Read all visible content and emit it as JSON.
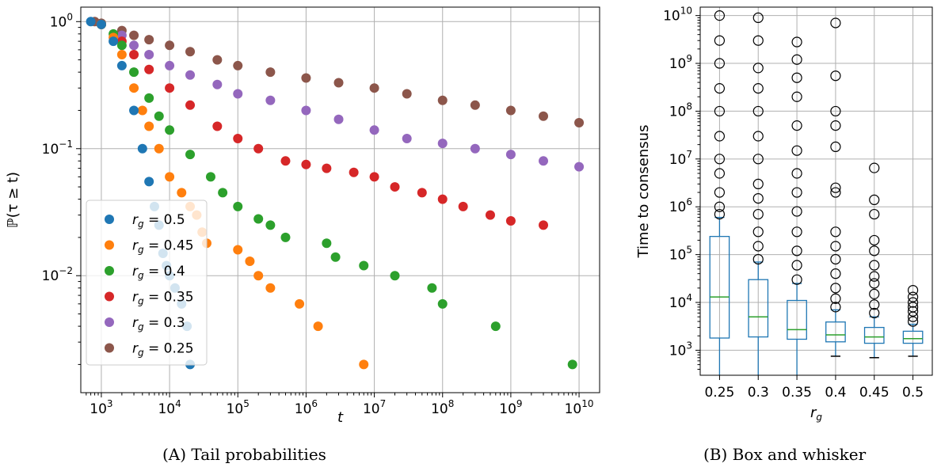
{
  "captions": {
    "a": "(A) Tail probabilities",
    "b": "(B) Box and whisker"
  },
  "chart_data": [
    {
      "type": "scatter",
      "title": "",
      "xlabel": "t",
      "ylabel": "ℙ(τ ≥ t)",
      "xscale": "log",
      "yscale": "log",
      "xlim": [
        500,
        20000000000
      ],
      "ylim": [
        0.0012,
        1.3
      ],
      "xticks": [
        {
          "v": 1000,
          "m": "10",
          "e": "3"
        },
        {
          "v": 10000,
          "m": "10",
          "e": "4"
        },
        {
          "v": 100000,
          "m": "10",
          "e": "5"
        },
        {
          "v": 1000000,
          "m": "10",
          "e": "6"
        },
        {
          "v": 10000000,
          "m": "10",
          "e": "7"
        },
        {
          "v": 100000000,
          "m": "10",
          "e": "8"
        },
        {
          "v": 1000000000,
          "m": "10",
          "e": "9"
        },
        {
          "v": 10000000000,
          "m": "10",
          "e": "10"
        }
      ],
      "yticks": [
        {
          "v": 1,
          "m": "10",
          "e": "0"
        },
        {
          "v": 0.1,
          "m": "10",
          "e": "−1"
        },
        {
          "v": 0.01,
          "m": "10",
          "e": "−2"
        }
      ],
      "grid": true,
      "legend_position": "lower-left",
      "series": [
        {
          "name": "r_g = 0.5",
          "color": "#1f77b4",
          "x": [
            700,
            1000,
            1500,
            2000,
            3000,
            4000,
            5000,
            6000,
            7000,
            8000,
            9000,
            10000,
            12000,
            15000,
            18000,
            20000
          ],
          "y": [
            1.0,
            0.95,
            0.7,
            0.45,
            0.2,
            0.1,
            0.055,
            0.035,
            0.025,
            0.015,
            0.012,
            0.01,
            0.008,
            0.006,
            0.004,
            0.002
          ]
        },
        {
          "name": "r_g = 0.45",
          "color": "#ff7f0e",
          "x": [
            1000,
            1500,
            2000,
            3000,
            4000,
            5000,
            7000,
            10000,
            15000,
            20000,
            25000,
            30000,
            35000,
            100000,
            150000,
            200000,
            300000,
            800000,
            1500000,
            7000000
          ],
          "y": [
            0.95,
            0.75,
            0.55,
            0.3,
            0.2,
            0.15,
            0.1,
            0.06,
            0.045,
            0.035,
            0.03,
            0.022,
            0.018,
            0.016,
            0.013,
            0.01,
            0.008,
            0.006,
            0.004,
            0.002
          ]
        },
        {
          "name": "r_g = 0.4",
          "color": "#2ca02c",
          "x": [
            1000,
            1500,
            2000,
            3000,
            5000,
            7000,
            10000,
            20000,
            40000,
            60000,
            100000,
            200000,
            300000,
            500000,
            2000000,
            2700000,
            7000000,
            20000000,
            70000000,
            100000000,
            600000000,
            8000000000
          ],
          "y": [
            0.95,
            0.8,
            0.65,
            0.4,
            0.25,
            0.18,
            0.14,
            0.09,
            0.06,
            0.045,
            0.035,
            0.028,
            0.025,
            0.02,
            0.018,
            0.014,
            0.012,
            0.01,
            0.008,
            0.006,
            0.004,
            0.002
          ]
        },
        {
          "name": "r_g = 0.35",
          "color": "#d62728",
          "x": [
            1000,
            2000,
            3000,
            5000,
            10000,
            20000,
            50000,
            100000,
            200000,
            500000,
            1000000,
            2000000,
            5000000,
            10000000,
            20000000,
            50000000,
            100000000,
            200000000,
            500000000,
            1000000000,
            3000000000
          ],
          "y": [
            0.95,
            0.7,
            0.55,
            0.42,
            0.3,
            0.22,
            0.15,
            0.12,
            0.1,
            0.08,
            0.075,
            0.07,
            0.065,
            0.06,
            0.05,
            0.045,
            0.04,
            0.035,
            0.03,
            0.027,
            0.025
          ]
        },
        {
          "name": "r_g = 0.3",
          "color": "#9467bd",
          "x": [
            1000,
            2000,
            3000,
            5000,
            10000,
            20000,
            50000,
            100000,
            300000,
            1000000,
            3000000,
            10000000,
            30000000,
            100000000,
            300000000,
            1000000000,
            3000000000,
            10000000000
          ],
          "y": [
            0.95,
            0.78,
            0.65,
            0.55,
            0.45,
            0.38,
            0.32,
            0.27,
            0.24,
            0.2,
            0.17,
            0.14,
            0.12,
            0.11,
            0.1,
            0.09,
            0.08,
            0.072
          ]
        },
        {
          "name": "r_g = 0.25",
          "color": "#8c564b",
          "x": [
            800,
            1000,
            2000,
            3000,
            5000,
            10000,
            20000,
            50000,
            100000,
            300000,
            1000000,
            3000000,
            10000000,
            30000000,
            100000000,
            300000000,
            1000000000,
            3000000000,
            10000000000
          ],
          "y": [
            1.0,
            0.97,
            0.85,
            0.78,
            0.72,
            0.65,
            0.58,
            0.5,
            0.45,
            0.4,
            0.36,
            0.33,
            0.3,
            0.27,
            0.24,
            0.22,
            0.2,
            0.18,
            0.16
          ]
        }
      ]
    },
    {
      "type": "box",
      "title": "",
      "xlabel": "r_g",
      "ylabel": "Time to consensus",
      "yscale": "log",
      "ylim": [
        300,
        15000000000
      ],
      "categories": [
        "0.25",
        "0.3",
        "0.35",
        "0.4",
        "0.45",
        "0.5"
      ],
      "yticks": [
        {
          "v": 1000,
          "m": "10",
          "e": "3"
        },
        {
          "v": 10000,
          "m": "10",
          "e": "4"
        },
        {
          "v": 100000,
          "m": "10",
          "e": "5"
        },
        {
          "v": 1000000,
          "m": "10",
          "e": "6"
        },
        {
          "v": 10000000,
          "m": "10",
          "e": "7"
        },
        {
          "v": 100000000,
          "m": "10",
          "e": "8"
        },
        {
          "v": 1000000000,
          "m": "10",
          "e": "9"
        },
        {
          "v": 10000000000,
          "m": "10",
          "e": "10"
        }
      ],
      "grid": true,
      "box_color": "#1f77b4",
      "median_color": "#2ca02c",
      "boxes": [
        {
          "whislo": 300,
          "q1": 1800,
          "med": 13000,
          "q3": 240000,
          "whishi": 600000,
          "fliers": [
            700000,
            1000000,
            2000000,
            5000000,
            10000000,
            30000000,
            100000000,
            300000000,
            1000000000,
            3000000000,
            10000000000
          ]
        },
        {
          "whislo": 300,
          "q1": 1900,
          "med": 5000,
          "q3": 30000,
          "whishi": 70000,
          "fliers": [
            80000,
            150000,
            300000,
            700000,
            1500000,
            3000000,
            10000000,
            30000000,
            100000000,
            300000000,
            800000000,
            3000000000,
            9000000000
          ]
        },
        {
          "whislo": 300,
          "q1": 1700,
          "med": 2700,
          "q3": 11000,
          "whishi": 25000,
          "fliers": [
            30000,
            60000,
            120000,
            300000,
            800000,
            2000000,
            5000000,
            15000000,
            50000000,
            200000000,
            500000000,
            1200000000,
            2800000000
          ]
        },
        {
          "whislo": 750,
          "q1": 1500,
          "med": 2100,
          "q3": 3900,
          "whishi": 7000,
          "fliers": [
            8000,
            12000,
            20000,
            40000,
            80000,
            150000,
            300000,
            2000000,
            2500000,
            18000000,
            50000000,
            100000000,
            550000000,
            7000000000
          ]
        },
        {
          "whislo": 700,
          "q1": 1400,
          "med": 1900,
          "q3": 3000,
          "whishi": 5000,
          "fliers": [
            6000,
            9000,
            15000,
            25000,
            35000,
            60000,
            120000,
            200000,
            700000,
            1400000,
            6500000
          ]
        },
        {
          "whislo": 750,
          "q1": 1400,
          "med": 1750,
          "q3": 2500,
          "whishi": 3500,
          "fliers": [
            4000,
            5000,
            6500,
            8000,
            10000,
            13000,
            18000
          ]
        }
      ]
    }
  ]
}
